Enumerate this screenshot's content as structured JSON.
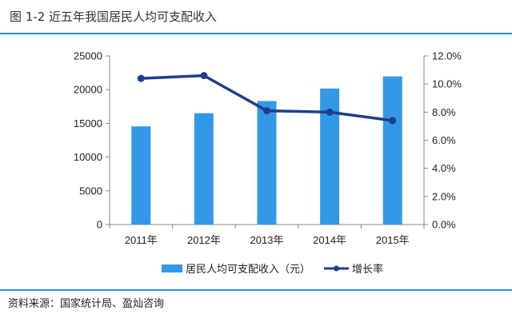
{
  "figure": {
    "title": "图 1-2  近五年我国居民人均可支配收入",
    "source": "资料来源：国家统计局、盈灿咨询"
  },
  "chart_data": {
    "type": "bar",
    "categories": [
      "2011年",
      "2012年",
      "2013年",
      "2014年",
      "2015年"
    ],
    "series": [
      {
        "name": "居民人均可支配收入（元）",
        "type": "bar",
        "axis": "left",
        "color": "#3399e6",
        "values": [
          14551,
          16510,
          18311,
          20167,
          21966
        ]
      },
      {
        "name": "增长率",
        "type": "line",
        "axis": "right",
        "color": "#1f3f8c",
        "values": [
          0.104,
          0.106,
          0.081,
          0.08,
          0.074
        ]
      }
    ],
    "y_left": {
      "min": 0,
      "max": 25000,
      "ticks": [
        "0",
        "5000",
        "10000",
        "15000",
        "20000",
        "25000"
      ]
    },
    "y_right": {
      "min": 0,
      "max": 0.12,
      "ticks": [
        "0.0%",
        "2.0%",
        "4.0%",
        "6.0%",
        "8.0%",
        "10.0%",
        "12.0%"
      ]
    },
    "grid": false,
    "legend": "bottom"
  }
}
